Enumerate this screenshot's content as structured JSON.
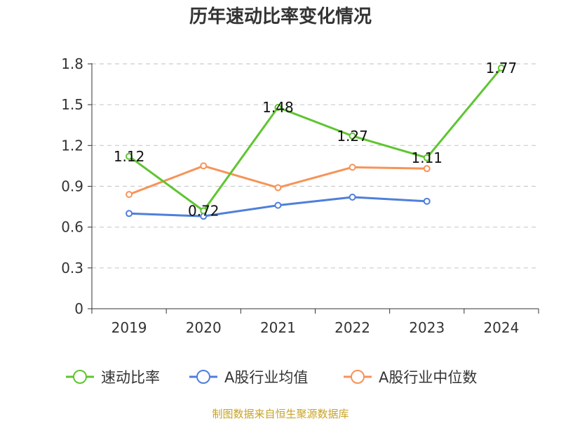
{
  "chart_data": {
    "type": "line",
    "title": "历年速动比率变化情况",
    "categories": [
      "2019",
      "2020",
      "2021",
      "2022",
      "2023",
      "2024"
    ],
    "series": [
      {
        "name": "速动比率",
        "color": "#5fc531",
        "values": [
          1.12,
          0.72,
          1.48,
          1.27,
          1.11,
          1.77
        ],
        "labels": [
          "1.12",
          "0.72",
          "1.48",
          "1.27",
          "1.11",
          "1.77"
        ]
      },
      {
        "name": "A股行业均值",
        "color": "#4f7fdb",
        "values": [
          0.7,
          0.68,
          0.76,
          0.82,
          0.79,
          null
        ]
      },
      {
        "name": "A股行业中位数",
        "color": "#f79357",
        "values": [
          0.84,
          1.05,
          0.89,
          1.04,
          1.03,
          null
        ]
      }
    ],
    "ylim": [
      0,
      1.8
    ],
    "yticks": [
      0,
      0.3,
      0.6,
      0.9,
      1.2,
      1.5,
      1.8
    ],
    "ytick_labels": [
      "0",
      "0.3",
      "0.6",
      "0.9",
      "1.2",
      "1.5",
      "1.8"
    ],
    "grid": true,
    "legend_position": "bottom"
  },
  "footer": {
    "source": "制图数据来自恒生聚源数据库"
  }
}
